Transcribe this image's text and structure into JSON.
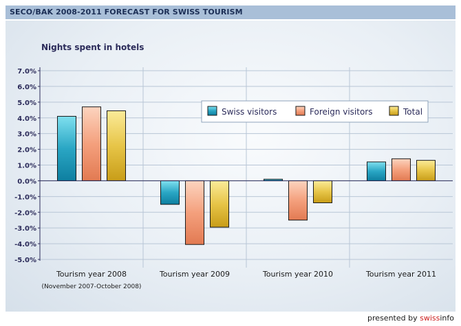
{
  "header": {
    "title": "SECO/BAK 2008-2011 FORECAST FOR SWISS TOURISM"
  },
  "footer": {
    "prefix": "presented by ",
    "brand_a": "swiss",
    "brand_b": "info"
  },
  "colors": {
    "swiss": "#2aa6c4",
    "foreign": "#f4a07d",
    "total": "#e7c548",
    "axis": "#2b2b5a",
    "grid": "#b8c6d6"
  },
  "chart_data": {
    "type": "bar",
    "title": "Nights spent in hotels",
    "categories": [
      "Tourism year 2008",
      "Tourism year 2009",
      "Tourism year 2010",
      "Tourism year 2011"
    ],
    "category_notes": [
      "(November 2007-October 2008)",
      "",
      "",
      ""
    ],
    "series": [
      {
        "name": "Swiss visitors",
        "values": [
          4.1,
          -1.5,
          0.1,
          1.2
        ]
      },
      {
        "name": "Foreign visitors",
        "values": [
          4.7,
          -4.05,
          -2.5,
          1.4
        ]
      },
      {
        "name": "Total",
        "values": [
          4.45,
          -2.95,
          -1.4,
          1.3
        ]
      }
    ],
    "ylim": [
      -5,
      7
    ],
    "yticks": [
      "7.0%",
      "6.0%",
      "5.0%",
      "4.0%",
      "3.0%",
      "2.0%",
      "1.0%",
      "0.0%",
      "-1.0%",
      "-2.0%",
      "-3.0%",
      "-4.0%",
      "-5.0%"
    ],
    "grid": true,
    "legend_position": "top-right"
  }
}
